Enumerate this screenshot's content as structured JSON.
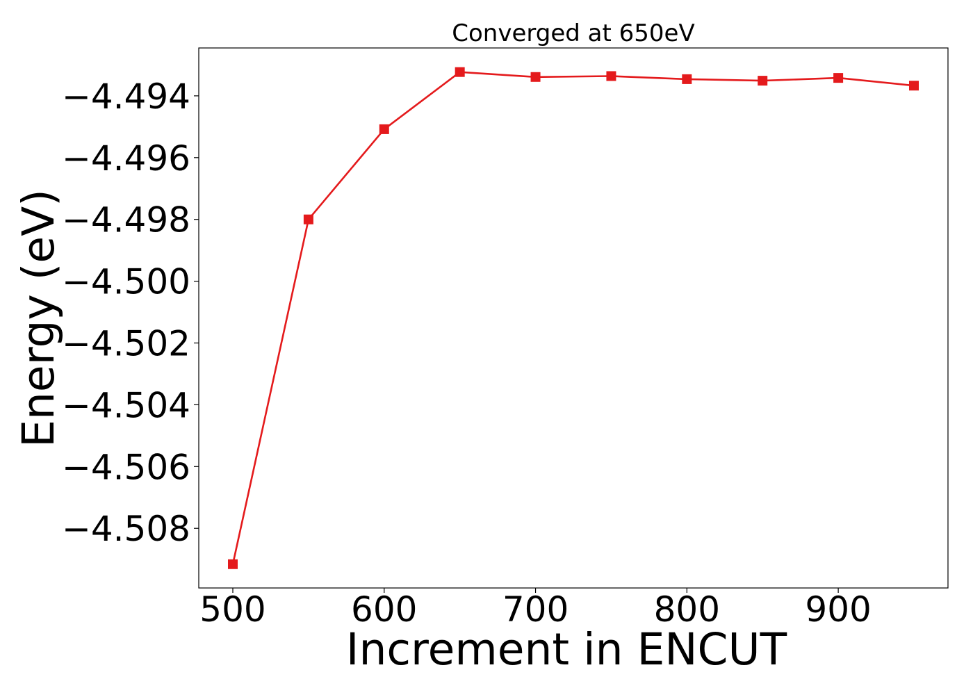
{
  "chart_data": {
    "type": "line",
    "title": "Converged at 650eV",
    "xlabel": "Increment in ENCUT",
    "ylabel": "Energy (eV)",
    "x": [
      500,
      550,
      600,
      650,
      700,
      750,
      800,
      850,
      900,
      950
    ],
    "series": [
      {
        "values": [
          -4.50916,
          -4.498,
          -4.49508,
          -4.49323,
          -4.49339,
          -4.49336,
          -4.49346,
          -4.49351,
          -4.49342,
          -4.49367
        ],
        "color": "#e41a1c",
        "marker": "square"
      }
    ],
    "xticks": [
      500,
      600,
      700,
      800,
      900
    ],
    "xtick_labels": [
      "500",
      "600",
      "700",
      "800",
      "900"
    ],
    "yticks": [
      -4.494,
      -4.496,
      -4.498,
      -4.5,
      -4.502,
      -4.504,
      -4.506,
      -4.508
    ],
    "ytick_labels": [
      "−4.494",
      "−4.496",
      "−4.498",
      "−4.500",
      "−4.502",
      "−4.504",
      "−4.506",
      "−4.508"
    ],
    "xlim": [
      477.5,
      972.5
    ],
    "ylim": [
      -4.50993,
      -4.49245
    ],
    "grid": false,
    "legend": "none"
  }
}
